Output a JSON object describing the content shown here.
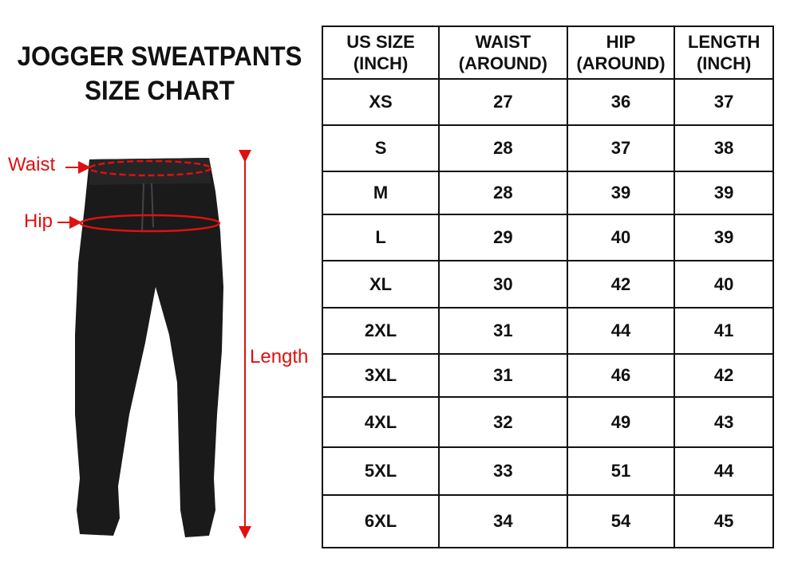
{
  "title": {
    "line1": "JOGGER SWEATPANTS",
    "line2": "SIZE CHART"
  },
  "labels": {
    "waist": "Waist",
    "hip": "Hip",
    "length": "Length"
  },
  "colors": {
    "annotation": "#e01010",
    "garment": "#1a1a1a"
  },
  "table": {
    "headers": [
      {
        "l1": "US SIZE",
        "l2": "(INCH)"
      },
      {
        "l1": "WAIST",
        "l2": "(AROUND)"
      },
      {
        "l1": "HIP",
        "l2": "(AROUND)"
      },
      {
        "l1": "LENGTH",
        "l2": "(INCH)"
      }
    ],
    "rows": [
      [
        "XS",
        "27",
        "36",
        "37"
      ],
      [
        "S",
        "28",
        "37",
        "38"
      ],
      [
        "M",
        "28",
        "39",
        "39"
      ],
      [
        "L",
        "29",
        "40",
        "39"
      ],
      [
        "XL",
        "30",
        "42",
        "40"
      ],
      [
        "2XL",
        "31",
        "44",
        "41"
      ],
      [
        "3XL",
        "31",
        "46",
        "42"
      ],
      [
        "4XL",
        "32",
        "49",
        "43"
      ],
      [
        "5XL",
        "33",
        "51",
        "44"
      ],
      [
        "6XL",
        "34",
        "54",
        "45"
      ]
    ]
  }
}
